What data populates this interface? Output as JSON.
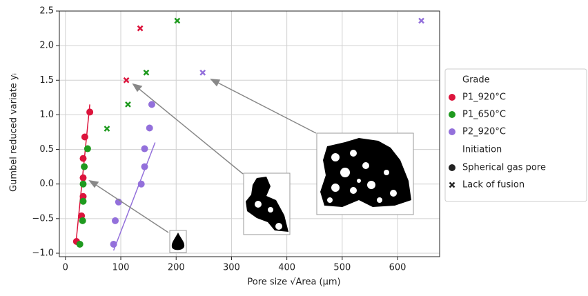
{
  "chart_data": {
    "type": "scatter",
    "x_label": "Pore size √Area (μm)",
    "y_label": "Gumbel reduced variate yᵢ",
    "xlim": [
      -11,
      676
    ],
    "ylim": [
      -1.05,
      2.5
    ],
    "xticks": [
      0,
      100,
      200,
      300,
      400,
      500,
      600
    ],
    "yticks": [
      {
        "value": -1.0,
        "label": "−1.0"
      },
      {
        "value": -0.5,
        "label": "−0.5"
      },
      {
        "value": 0.0,
        "label": "0.0"
      },
      0.5,
      {
        "value": 1.0,
        "label": "1.0"
      },
      1.5,
      {
        "value": 2.0,
        "label": "2.0"
      },
      2.5
    ],
    "grid": true,
    "legend_title": "Grade",
    "marker_legend_title": "Initiation",
    "marker_legend": [
      {
        "marker": "o",
        "label": "Spherical gas pore"
      },
      {
        "marker": "x",
        "label": "Lack of fusion"
      }
    ],
    "series": [
      {
        "name": "P1_920°C",
        "color": "#dc143c",
        "x": [
          20,
          29,
          32,
          32,
          32,
          35,
          44,
          110,
          135
        ],
        "values": [
          -0.83,
          -0.46,
          -0.18,
          0.09,
          0.37,
          0.68,
          1.04,
          1.5,
          2.25
        ],
        "markers": [
          "o",
          "o",
          "o",
          "o",
          "o",
          "o",
          "o",
          "x",
          "x"
        ],
        "fit": {
          "x": [
            19,
            44
          ],
          "y": [
            -0.85,
            1.15
          ]
        }
      },
      {
        "name": "P1_650°C",
        "color": "#1f9a1f",
        "x": [
          26,
          31,
          32,
          32,
          34,
          40,
          75,
          113,
          146,
          202
        ],
        "values": [
          -0.87,
          -0.53,
          -0.25,
          0.0,
          0.25,
          0.51,
          0.8,
          1.15,
          1.61,
          2.36
        ],
        "markers": [
          "o",
          "o",
          "o",
          "o",
          "o",
          "o",
          "x",
          "x",
          "x",
          "x"
        ]
      },
      {
        "name": "P2_920°C",
        "color": "#9370db",
        "x": [
          87,
          90,
          96,
          137,
          143,
          143,
          152,
          156,
          248,
          643
        ],
        "values": [
          -0.87,
          -0.53,
          -0.26,
          0.0,
          0.25,
          0.51,
          0.81,
          1.15,
          1.61,
          2.36
        ],
        "markers": [
          "o",
          "o",
          "o",
          "o",
          "o",
          "o",
          "o",
          "o",
          "x",
          "x"
        ],
        "fit": {
          "x": [
            87,
            162
          ],
          "y": [
            -0.96,
            0.6
          ]
        }
      }
    ]
  }
}
